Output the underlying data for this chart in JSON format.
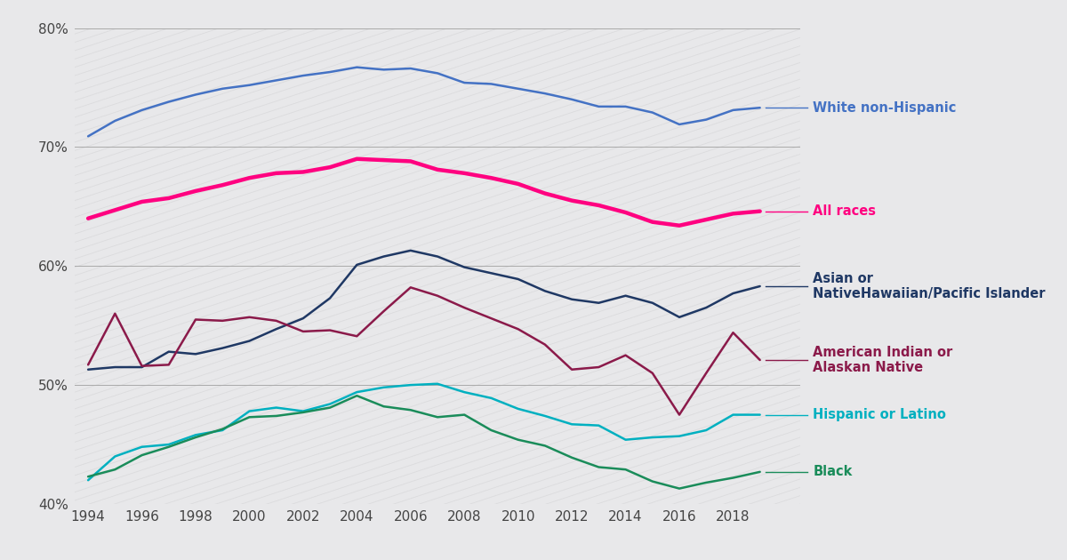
{
  "years": [
    1994,
    1995,
    1996,
    1997,
    1998,
    1999,
    2000,
    2001,
    2002,
    2003,
    2004,
    2005,
    2006,
    2007,
    2008,
    2009,
    2010,
    2011,
    2012,
    2013,
    2014,
    2015,
    2016,
    2017,
    2018,
    2019
  ],
  "series": {
    "White non-Hispanic": {
      "values": [
        70.9,
        72.2,
        73.1,
        73.8,
        74.4,
        74.9,
        75.2,
        75.6,
        76.0,
        76.3,
        76.7,
        76.5,
        76.6,
        76.2,
        75.4,
        75.3,
        74.9,
        74.5,
        74.0,
        73.4,
        73.4,
        72.9,
        71.9,
        72.3,
        73.1,
        73.3
      ],
      "color": "#4472C4",
      "linewidth": 1.8
    },
    "All races": {
      "values": [
        64.0,
        64.7,
        65.4,
        65.7,
        66.3,
        66.8,
        67.4,
        67.8,
        67.9,
        68.3,
        69.0,
        68.9,
        68.8,
        68.1,
        67.8,
        67.4,
        66.9,
        66.1,
        65.5,
        65.1,
        64.5,
        63.7,
        63.4,
        63.9,
        64.4,
        64.6
      ],
      "color": "#FF0080",
      "linewidth": 3.2
    },
    "Asian or\nNativeHawaiian/Pacific Islander": {
      "values": [
        51.3,
        51.5,
        51.5,
        52.8,
        52.6,
        53.1,
        53.7,
        54.7,
        55.6,
        57.3,
        60.1,
        60.8,
        61.3,
        60.8,
        59.9,
        59.4,
        58.9,
        57.9,
        57.2,
        56.9,
        57.5,
        56.9,
        55.7,
        56.5,
        57.7,
        58.3
      ],
      "color": "#1F3864",
      "linewidth": 1.8
    },
    "American Indian or\nAlaskan Native": {
      "values": [
        51.7,
        56.0,
        51.6,
        51.7,
        55.5,
        55.4,
        55.7,
        55.4,
        54.5,
        54.6,
        54.1,
        56.2,
        58.2,
        57.5,
        56.5,
        55.6,
        54.7,
        53.4,
        51.3,
        51.5,
        52.5,
        51.0,
        47.5,
        51.0,
        54.4,
        52.1
      ],
      "color": "#8B1A4A",
      "linewidth": 1.8
    },
    "Hispanic or Latino": {
      "values": [
        42.0,
        44.0,
        44.8,
        45.0,
        45.8,
        46.2,
        47.8,
        48.1,
        47.8,
        48.4,
        49.4,
        49.8,
        50.0,
        50.1,
        49.4,
        48.9,
        48.0,
        47.4,
        46.7,
        46.6,
        45.4,
        45.6,
        45.7,
        46.2,
        47.5,
        47.5
      ],
      "color": "#00B0C0",
      "linewidth": 1.8
    },
    "Black": {
      "values": [
        42.3,
        42.9,
        44.1,
        44.8,
        45.6,
        46.3,
        47.3,
        47.4,
        47.7,
        48.1,
        49.1,
        48.2,
        47.9,
        47.3,
        47.5,
        46.2,
        45.4,
        44.9,
        43.9,
        43.1,
        42.9,
        41.9,
        41.3,
        41.8,
        42.2,
        42.7
      ],
      "color": "#1A8C5A",
      "linewidth": 1.8
    }
  },
  "ylim": [
    40,
    80
  ],
  "yticks": [
    40,
    50,
    60,
    70,
    80
  ],
  "ytick_labels": [
    "40%",
    "50%",
    "60%",
    "70%",
    "80%"
  ],
  "xtick_start": 1994,
  "xtick_end": 2019,
  "xtick_step": 2,
  "bg_color": "#E8E8EA",
  "grid_color": "#AAAAAA",
  "label_order": [
    "White non-Hispanic",
    "All races",
    "Asian or\nNativeHawaiian/Pacific Islander",
    "American Indian or\nAlaskan Native",
    "Hispanic or Latino",
    "Black"
  ],
  "label_display": {
    "White non-Hispanic": "White non-Hispanic",
    "All races": "All races",
    "Asian or\nNativeHawaiian/Pacific Islander": "Asian or\nNativeHawaiian/Pacific Islander",
    "American Indian or\nAlaskan Native": "American Indian or\nAlaskan Native",
    "Hispanic or Latino": "Hispanic or Latino",
    "Black": "Black"
  }
}
